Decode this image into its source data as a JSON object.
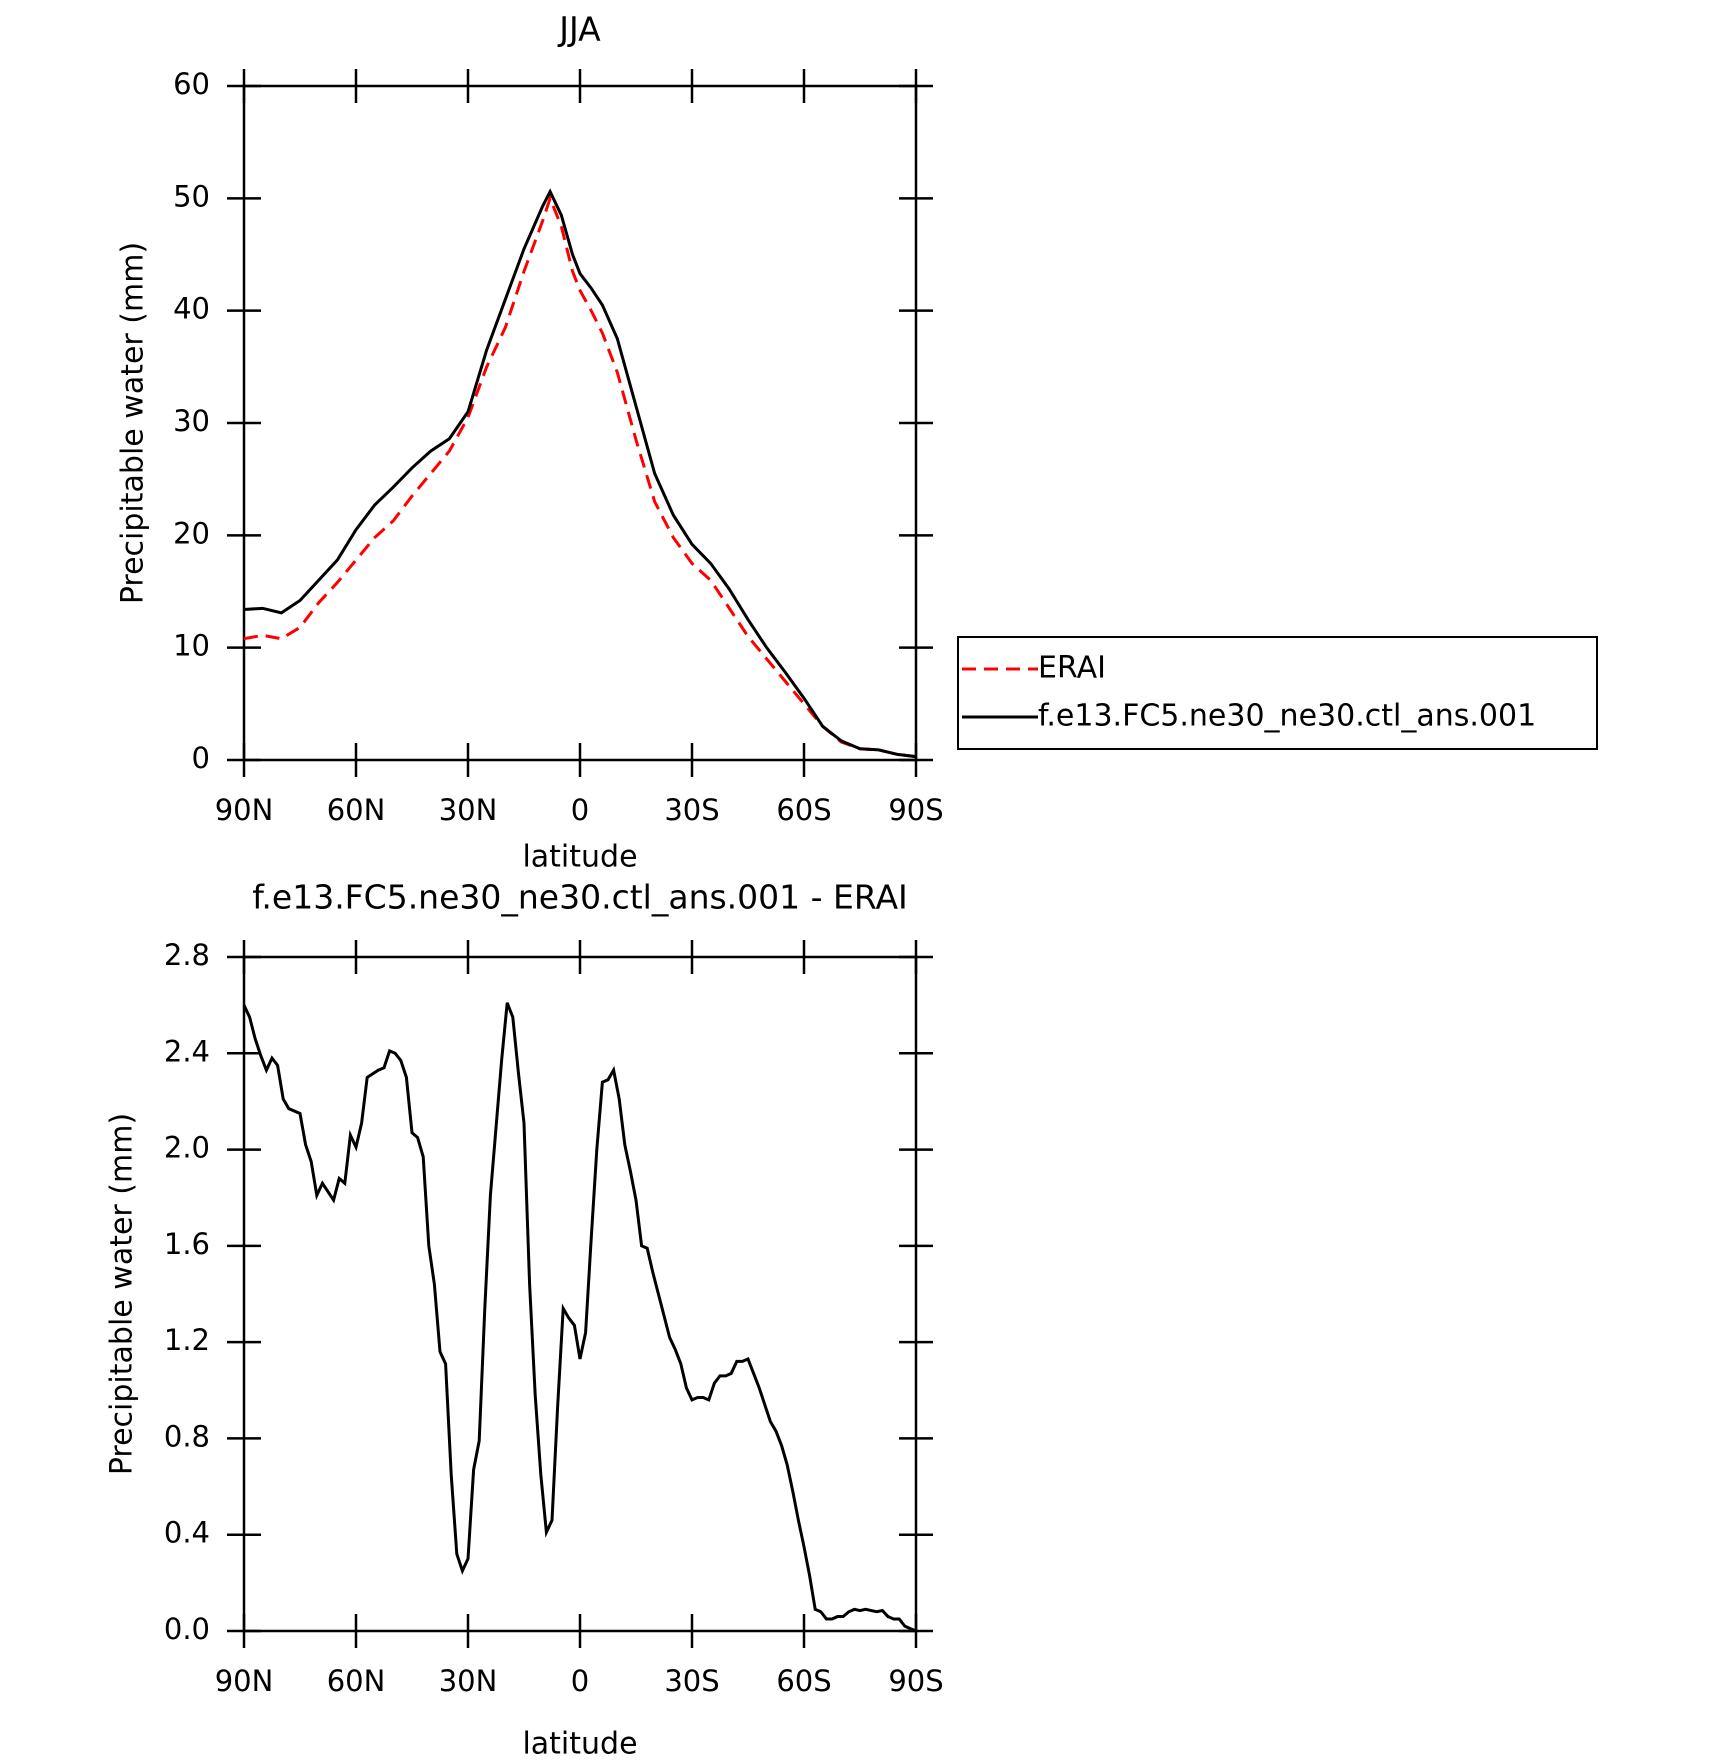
{
  "chart_data": [
    {
      "type": "line",
      "title": "JJA",
      "xlabel": "latitude",
      "ylabel": "Precipitable water (mm)",
      "x": [
        90,
        85,
        80,
        75,
        70,
        65,
        60,
        55,
        50,
        45,
        40,
        35,
        30,
        25,
        20,
        15,
        10,
        8,
        5,
        2,
        0,
        -3,
        -6,
        -10,
        -15,
        -20,
        -25,
        -30,
        -35,
        -40,
        -45,
        -50,
        -55,
        -60,
        -65,
        -70,
        -75,
        -80,
        -85,
        -90
      ],
      "series": [
        {
          "name": "ERAI",
          "color": "#ff0000",
          "dash": "dashed",
          "values": [
            10.8,
            11.1,
            10.8,
            11.8,
            14.0,
            15.8,
            17.8,
            19.8,
            21.3,
            23.5,
            25.5,
            27.5,
            30.5,
            35.0,
            38.5,
            43.5,
            48.0,
            50.0,
            47.5,
            43.5,
            41.8,
            40.0,
            38.0,
            34.5,
            28.5,
            23.0,
            19.8,
            17.5,
            16.0,
            13.5,
            11.0,
            9.0,
            7.0,
            5.0,
            3.0,
            1.6,
            1.0,
            0.9,
            0.5,
            0.3
          ]
        },
        {
          "name": "f.e13.FC5.ne30_ne30.ctl_ans.001",
          "color": "#000000",
          "dash": "solid",
          "values": [
            13.4,
            13.5,
            13.1,
            14.2,
            16.0,
            17.8,
            20.5,
            22.7,
            24.3,
            26.0,
            27.5,
            28.6,
            31.0,
            36.5,
            41.0,
            45.5,
            49.3,
            50.6,
            48.5,
            45.0,
            43.3,
            42.0,
            40.5,
            37.5,
            31.5,
            25.5,
            21.8,
            19.2,
            17.5,
            15.2,
            12.5,
            10.0,
            7.8,
            5.5,
            3.0,
            1.7,
            1.0,
            0.9,
            0.5,
            0.3
          ]
        }
      ],
      "xlim": [
        90,
        -90
      ],
      "xticks": [
        {
          "value": 90,
          "label": "90N"
        },
        {
          "value": 60,
          "label": "60N"
        },
        {
          "value": 30,
          "label": "30N"
        },
        0,
        {
          "value": -30,
          "label": "30S"
        },
        {
          "value": -60,
          "label": "60S"
        },
        {
          "value": -90,
          "label": "90S"
        }
      ],
      "ylim": [
        0,
        60
      ],
      "yticks": [
        0,
        10,
        20,
        30,
        40,
        50,
        60
      ],
      "legend": "right"
    },
    {
      "type": "line",
      "title": "f.e13.FC5.ne30_ne30.ctl_ans.001 - ERAI",
      "xlabel": "latitude",
      "ylabel": "Precipitable water (mm)",
      "x": [
        90,
        88.5,
        87,
        85.5,
        84,
        82.5,
        81,
        79.5,
        78,
        75,
        73.5,
        72,
        70.5,
        69,
        66,
        64.5,
        63,
        61.5,
        60,
        58.5,
        57,
        54,
        52.5,
        51,
        49.5,
        48,
        46.5,
        45,
        43.5,
        42,
        40.5,
        39,
        37.5,
        36,
        34.5,
        33,
        31.5,
        30,
        28.5,
        27,
        25.5,
        24,
        22.5,
        21,
        19.5,
        18,
        16.5,
        15,
        13.5,
        12,
        10.5,
        9,
        7.5,
        6,
        4.5,
        3,
        1.5,
        0,
        -1.5,
        -3,
        -4.5,
        -6,
        -7.5,
        -9,
        -10.5,
        -12,
        -13.5,
        -15,
        -16.5,
        -18,
        -19.5,
        -21,
        -22.5,
        -24,
        -25.5,
        -27,
        -28.5,
        -30,
        -31.5,
        -33,
        -34.5,
        -36,
        -37.5,
        -39,
        -40.5,
        -42,
        -43.5,
        -45,
        -46.5,
        -48,
        -49.5,
        -51,
        -52.5,
        -54,
        -55.5,
        -57,
        -58.5,
        -60,
        -61.5,
        -63,
        -64.5,
        -66,
        -67.5,
        -69,
        -70.5,
        -72,
        -73.5,
        -75,
        -76.5,
        -78,
        -79.5,
        -81,
        -82.5,
        -84,
        -85.5,
        -87,
        -88.5,
        -90
      ],
      "series": [
        {
          "name": "f.e13.FC5.ne30_ne30.ctl_ans.001 - ERAI",
          "color": "#000000",
          "values": [
            2.6,
            2.55,
            2.46,
            2.39,
            2.33,
            2.38,
            2.35,
            2.21,
            2.17,
            2.15,
            2.02,
            1.95,
            1.81,
            1.86,
            1.79,
            1.88,
            1.86,
            2.06,
            2.01,
            2.11,
            2.3,
            2.33,
            2.34,
            2.41,
            2.4,
            2.37,
            2.3,
            2.07,
            2.05,
            1.97,
            1.6,
            1.44,
            1.16,
            1.11,
            0.65,
            0.32,
            0.25,
            0.3,
            0.67,
            0.79,
            1.34,
            1.81,
            2.09,
            2.37,
            2.61,
            2.55,
            2.32,
            2.11,
            1.44,
            0.98,
            0.65,
            0.41,
            0.46,
            0.93,
            1.34,
            1.3,
            1.27,
            1.13,
            1.24,
            1.63,
            2.0,
            2.28,
            2.29,
            2.33,
            2.21,
            2.02,
            1.91,
            1.79,
            1.6,
            1.59,
            1.49,
            1.4,
            1.31,
            1.22,
            1.17,
            1.11,
            1.01,
            0.96,
            0.97,
            0.97,
            0.96,
            1.03,
            1.06,
            1.06,
            1.07,
            1.12,
            1.12,
            1.13,
            1.07,
            1.01,
            0.94,
            0.87,
            0.83,
            0.77,
            0.69,
            0.58,
            0.46,
            0.35,
            0.23,
            0.09,
            0.08,
            0.05,
            0.05,
            0.06,
            0.06,
            0.08,
            0.09,
            0.085,
            0.09,
            0.085,
            0.08,
            0.085,
            0.06,
            0.05,
            0.05,
            0.02,
            0.01,
            0.0
          ]
        }
      ],
      "xlim": [
        90,
        -90
      ],
      "xticks": [
        {
          "value": 90,
          "label": "90N"
        },
        {
          "value": 60,
          "label": "60N"
        },
        {
          "value": 30,
          "label": "30N"
        },
        0,
        {
          "value": -30,
          "label": "30S"
        },
        {
          "value": -60,
          "label": "60S"
        },
        {
          "value": -90,
          "label": "90S"
        }
      ],
      "ylim": [
        0,
        2.8
      ],
      "yticks": [
        {
          "value": 0,
          "label": "0.0"
        },
        0.4,
        0.8,
        1.2,
        1.6,
        {
          "value": 2,
          "label": "2.0"
        },
        2.4,
        2.8
      ]
    }
  ]
}
